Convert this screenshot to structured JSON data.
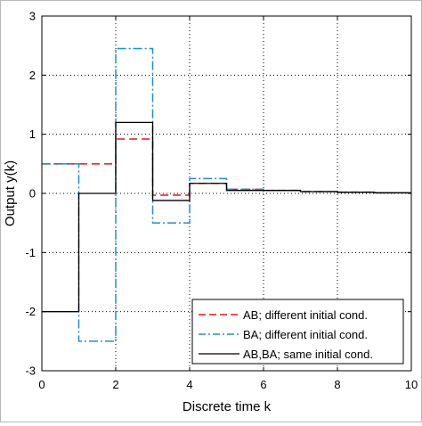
{
  "chart_data": {
    "type": "line",
    "step": "post",
    "xlabel": "Discrete time k",
    "ylabel": "Output y(k)",
    "xlim": [
      0,
      10
    ],
    "ylim": [
      -3,
      3
    ],
    "xticks": [
      "0",
      "2",
      "4",
      "6",
      "8",
      "10"
    ],
    "yticks": [
      "-3",
      "-2",
      "-1",
      "0",
      "1",
      "2",
      "3"
    ],
    "grid": true,
    "legend_position": "bottom-right",
    "series": [
      {
        "name": "AB; different initial cond.",
        "color": "#e8151b",
        "dash": "dashed",
        "x": [
          0,
          1,
          2,
          3,
          4,
          5,
          6,
          7,
          8,
          9,
          10
        ],
        "y": [
          0.5,
          0.5,
          0.92,
          -0.03,
          0.17,
          0.07,
          0.05,
          0.03,
          0.02,
          0.01,
          0.01
        ]
      },
      {
        "name": "BA; different initial cond.",
        "color": "#1f8fd0",
        "dash": "dashdot",
        "x": [
          0,
          1,
          2,
          3,
          4,
          5,
          6,
          7,
          8,
          9,
          10
        ],
        "y": [
          0.5,
          -2.5,
          2.45,
          -0.5,
          0.25,
          0.07,
          0.05,
          0.03,
          0.02,
          0.01,
          0.01
        ]
      },
      {
        "name": "AB,BA; same initial cond.",
        "color": "#000000",
        "dash": "solid",
        "x": [
          0,
          1,
          2,
          3,
          4,
          5,
          6,
          7,
          8,
          9,
          10
        ],
        "y": [
          -2.0,
          0.0,
          1.2,
          -0.12,
          0.17,
          0.05,
          0.05,
          0.03,
          0.02,
          0.01,
          0.01
        ]
      }
    ]
  }
}
